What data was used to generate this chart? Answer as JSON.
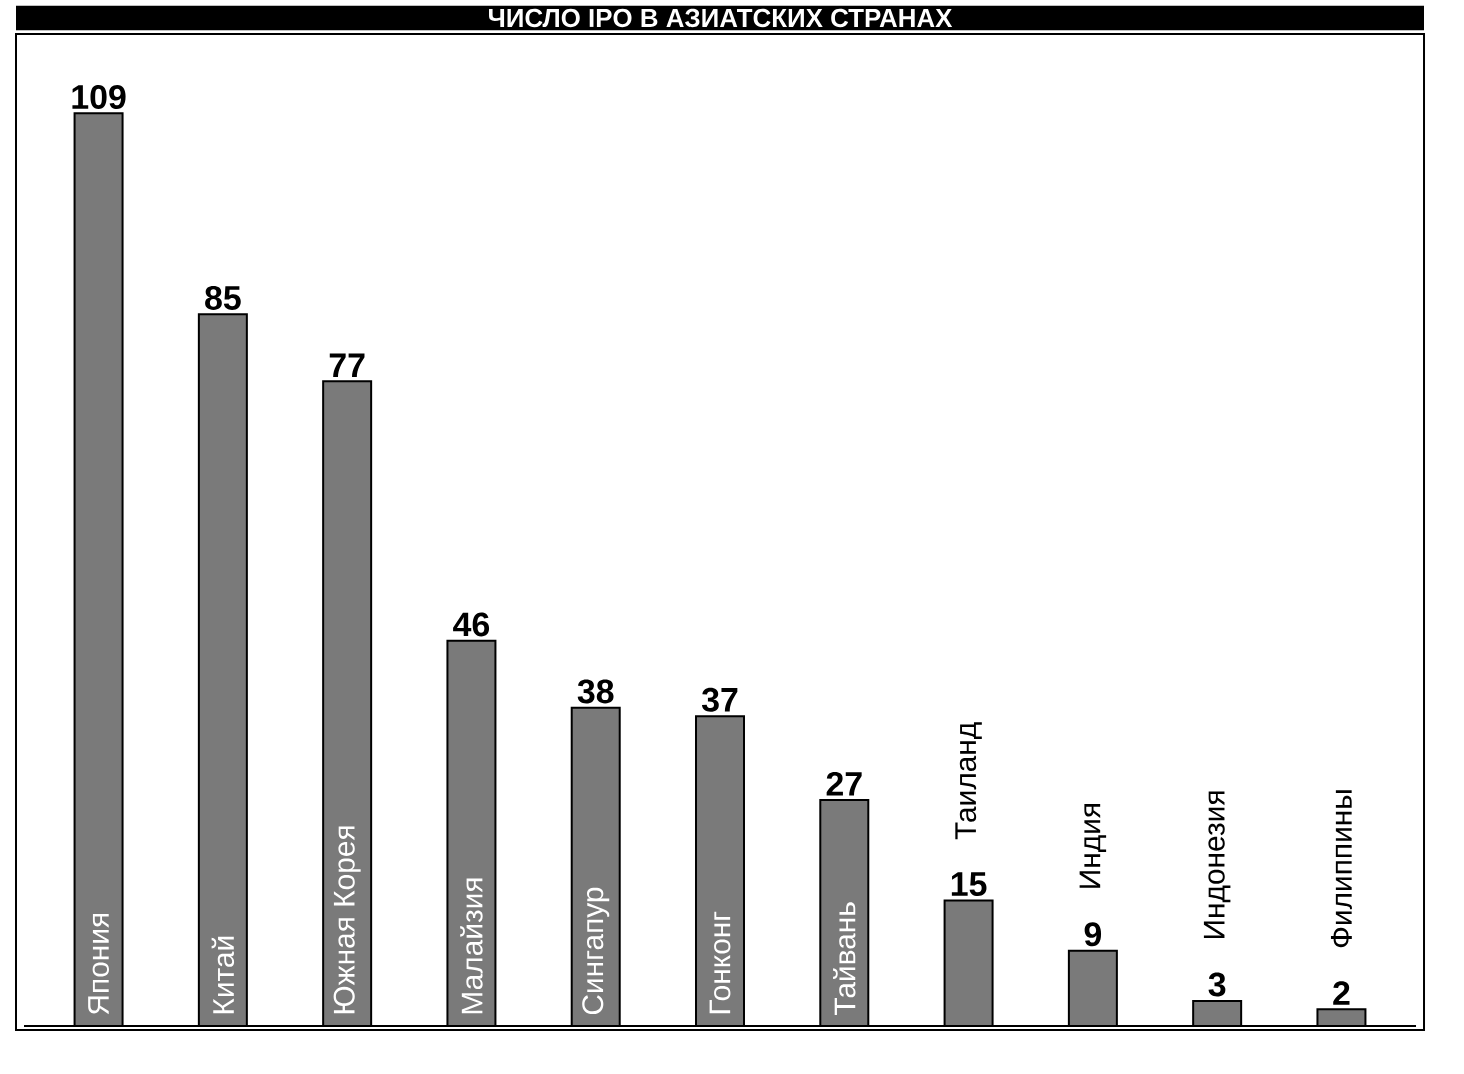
{
  "chart_data": {
    "type": "bar",
    "title": "ЧИСЛО IPO В АЗИАТСКИХ СТРАНАХ",
    "categories": [
      "Япония",
      "Китай",
      "Южная Корея",
      "Малайзия",
      "Сингапур",
      "Гонконг",
      "Тайвань",
      "Таиланд",
      "Индия",
      "Индонезия",
      "Филиппины"
    ],
    "values": [
      109,
      85,
      77,
      46,
      38,
      37,
      27,
      15,
      9,
      3,
      2
    ],
    "color": "#7a7a7a",
    "data_labels": true
  }
}
